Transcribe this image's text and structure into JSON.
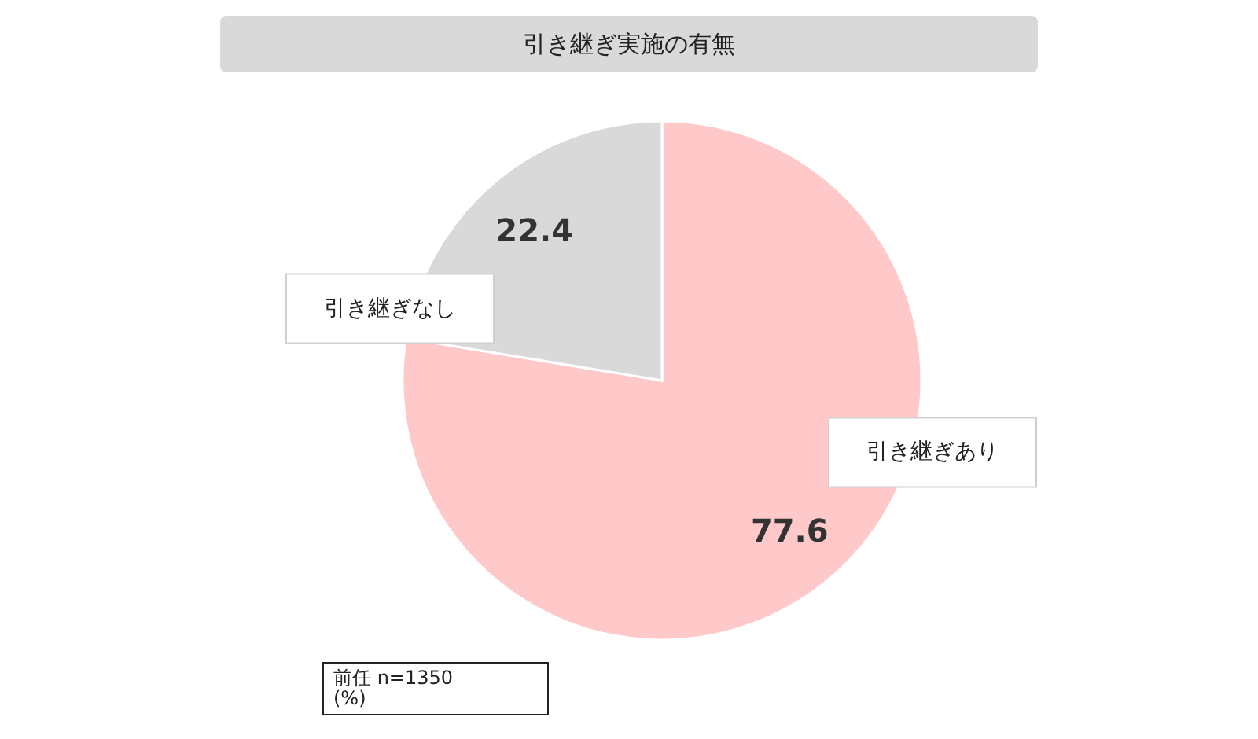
{
  "chart_data": {
    "type": "pie",
    "title": "引き継ぎ実施の有無",
    "categories": [
      "引き継ぎあり",
      "引き継ぎなし"
    ],
    "values": [
      77.6,
      22.4
    ],
    "colors": [
      "#ffc9c9",
      "#d9d9d9"
    ],
    "data_labels": true,
    "annotations": [
      "前任 n=1350",
      "(%)"
    ]
  }
}
